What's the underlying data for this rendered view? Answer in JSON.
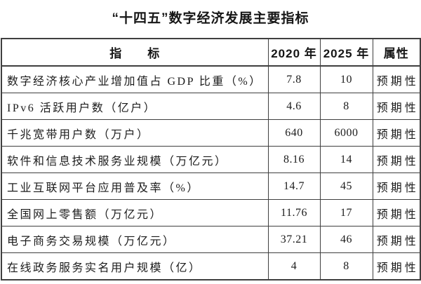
{
  "title": "“十四五”数字经济发展主要指标",
  "table": {
    "headers": {
      "indicator": "指　　标",
      "y2020": "2020 年",
      "y2025": "2025 年",
      "attribute": "属性"
    },
    "rows": [
      {
        "indicator": "数字经济核心产业增加值占 GDP 比重（%）",
        "y2020": "7.8",
        "y2025": "10",
        "attribute": "预期性"
      },
      {
        "indicator": "IPv6 活跃用户数（亿户）",
        "y2020": "4.6",
        "y2025": "8",
        "attribute": "预期性"
      },
      {
        "indicator": "千兆宽带用户数（万户）",
        "y2020": "640",
        "y2025": "6000",
        "attribute": "预期性"
      },
      {
        "indicator": "软件和信息技术服务业规模（万亿元）",
        "y2020": "8.16",
        "y2025": "14",
        "attribute": "预期性"
      },
      {
        "indicator": "工业互联网平台应用普及率（%）",
        "y2020": "14.7",
        "y2025": "45",
        "attribute": "预期性"
      },
      {
        "indicator": "全国网上零售额（万亿元）",
        "y2020": "11.76",
        "y2025": "17",
        "attribute": "预期性"
      },
      {
        "indicator": "电子商务交易规模（万亿元）",
        "y2020": "37.21",
        "y2025": "46",
        "attribute": "预期性"
      },
      {
        "indicator": "在线政务服务实名用户规模（亿）",
        "y2020": "4",
        "y2025": "8",
        "attribute": "预期性"
      }
    ]
  },
  "colors": {
    "border": "#3f3f3f",
    "text": "#1c1c1c",
    "background": "#ffffff"
  },
  "chart_data": {
    "type": "table",
    "title": "“十四五”数字经济发展主要指标",
    "columns": [
      "指标",
      "2020 年",
      "2025 年",
      "属性"
    ],
    "rows": [
      [
        "数字经济核心产业增加值占 GDP 比重（%）",
        7.8,
        10,
        "预期性"
      ],
      [
        "IPv6 活跃用户数（亿户）",
        4.6,
        8,
        "预期性"
      ],
      [
        "千兆宽带用户数（万户）",
        640,
        6000,
        "预期性"
      ],
      [
        "软件和信息技术服务业规模（万亿元）",
        8.16,
        14,
        "预期性"
      ],
      [
        "工业互联网平台应用普及率（%）",
        14.7,
        45,
        "预期性"
      ],
      [
        "全国网上零售额（万亿元）",
        11.76,
        17,
        "预期性"
      ],
      [
        "电子商务交易规模（万亿元）",
        37.21,
        46,
        "预期性"
      ],
      [
        "在线政务服务实名用户规模（亿）",
        4,
        8,
        "预期性"
      ]
    ]
  }
}
